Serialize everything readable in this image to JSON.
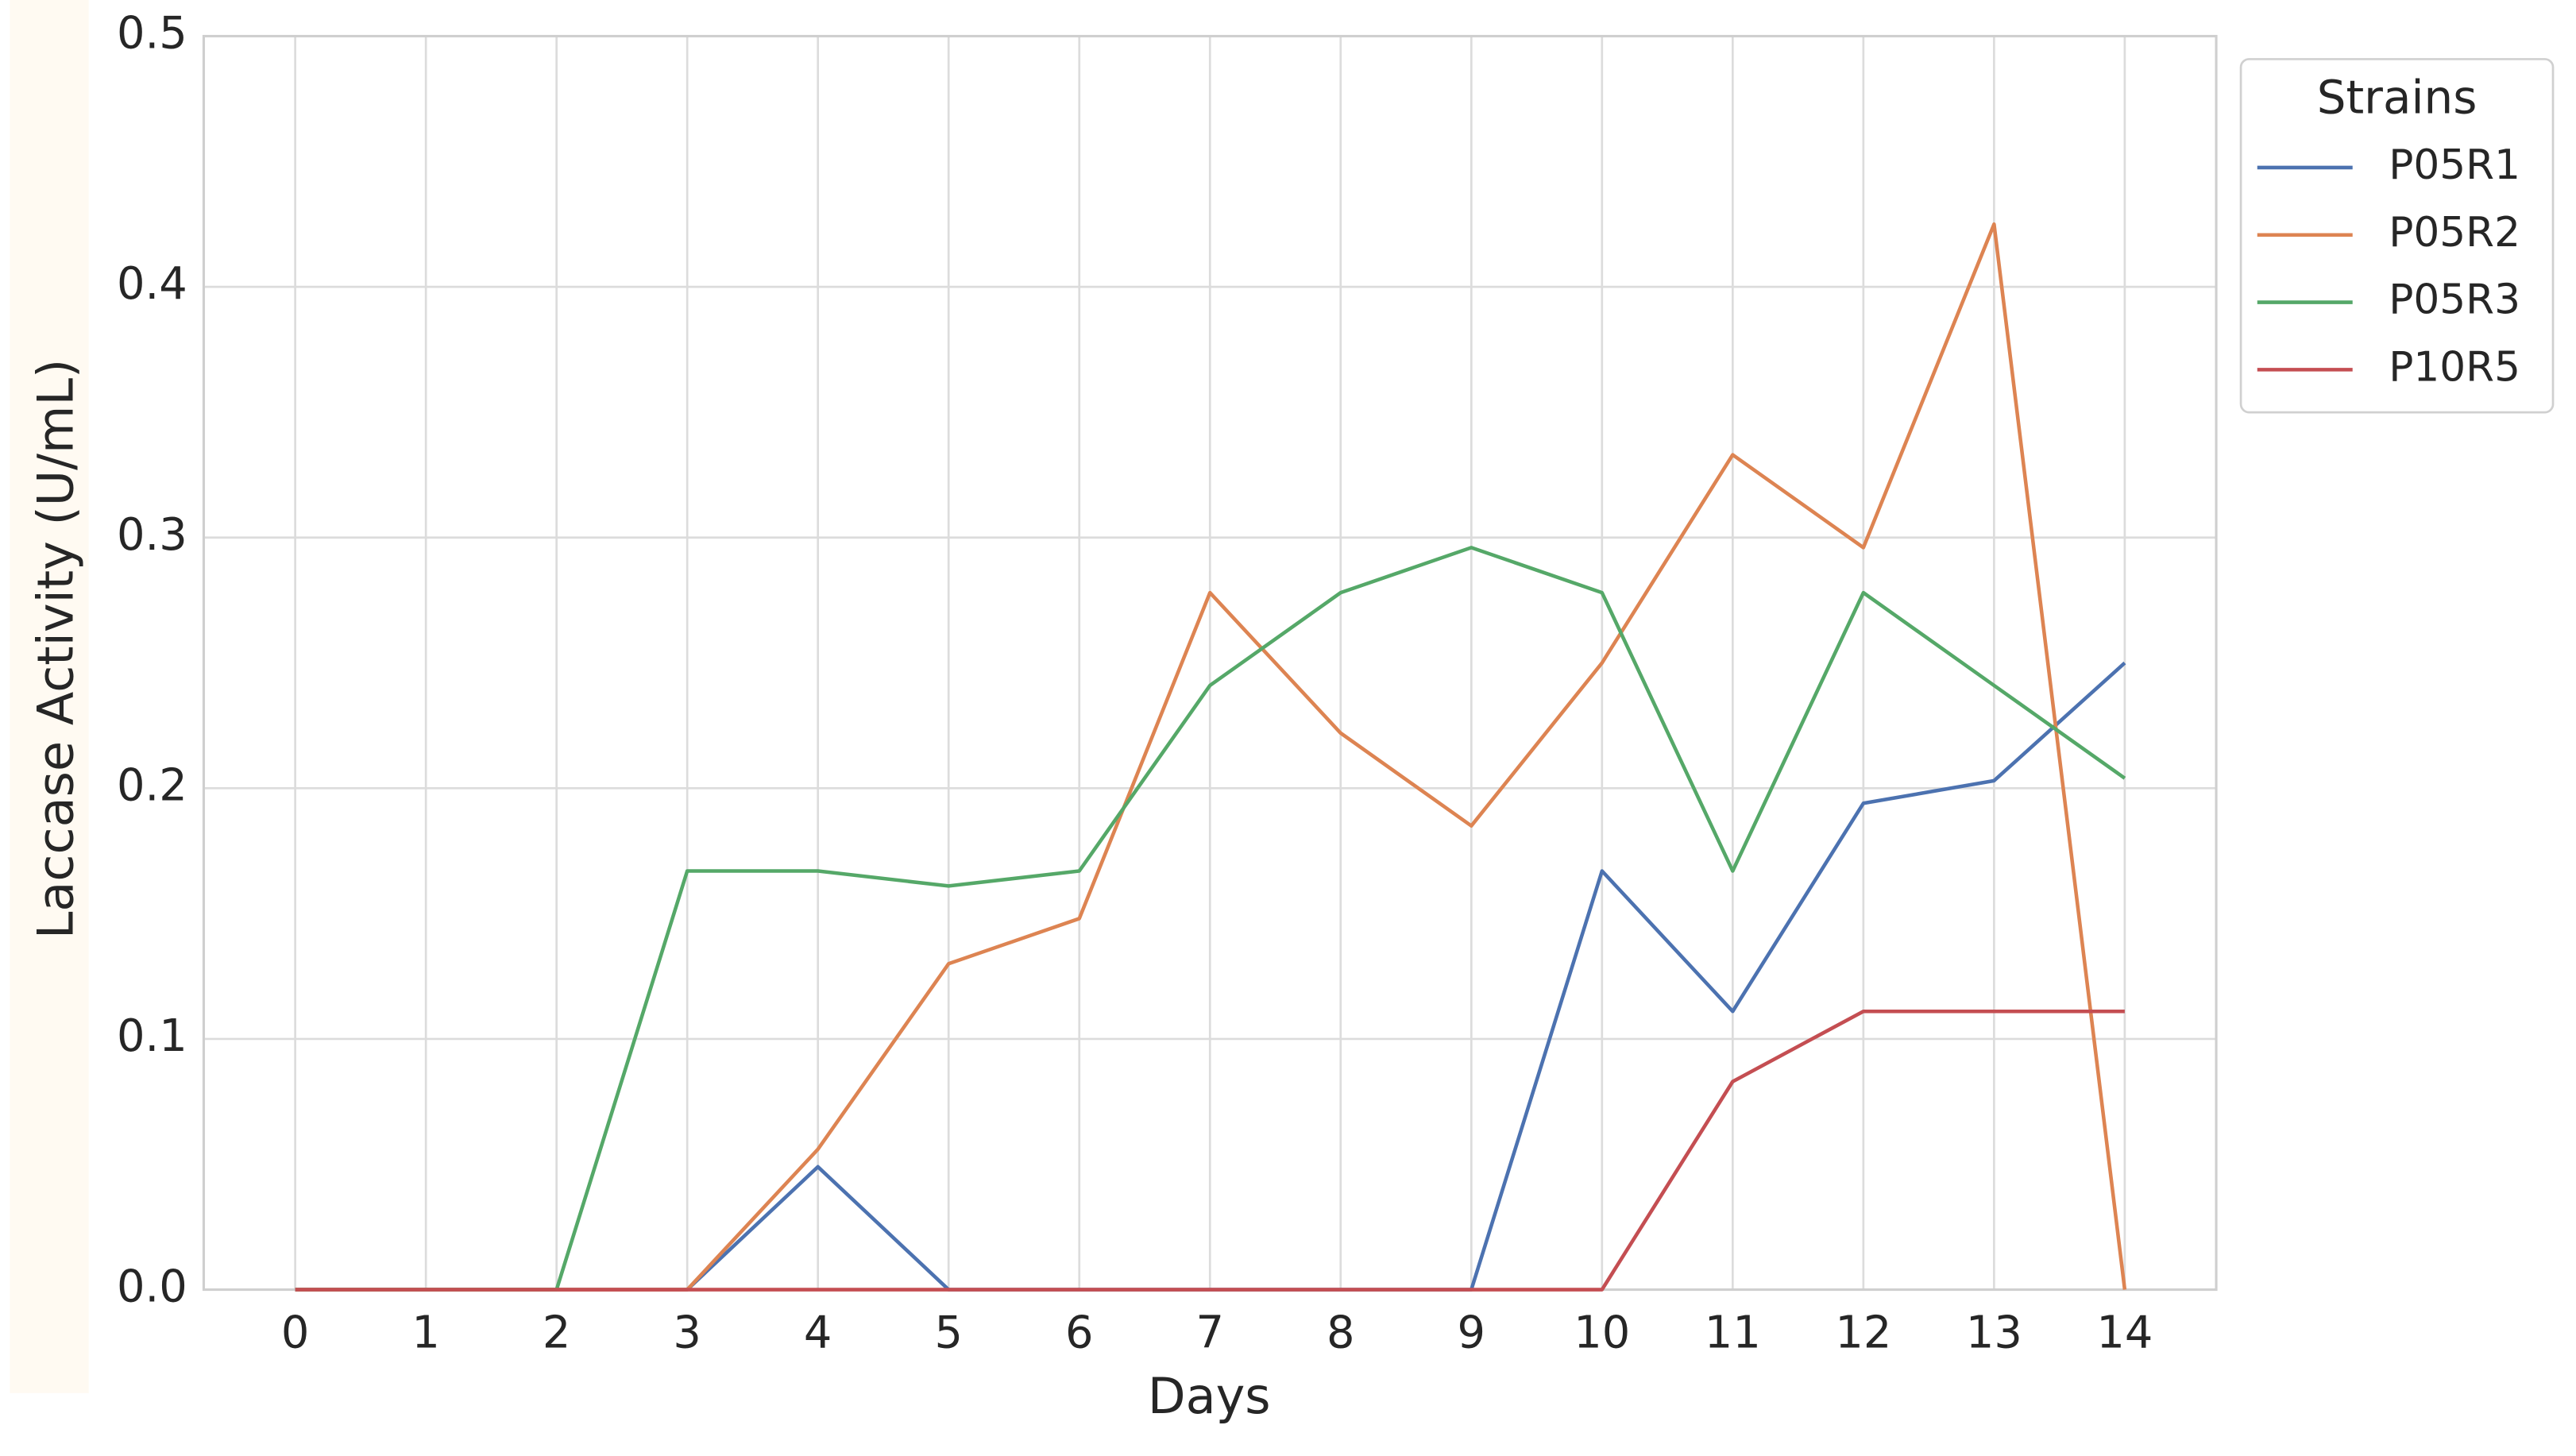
{
  "chart_data": {
    "type": "line",
    "x_label": "Days",
    "y_label": "Laccase Activity (U/mL)",
    "x": [
      0,
      1,
      2,
      3,
      4,
      5,
      6,
      7,
      8,
      9,
      10,
      11,
      12,
      13,
      14
    ],
    "xlim": [
      -0.7,
      14.7
    ],
    "xticks": [
      0,
      1,
      2,
      3,
      4,
      5,
      6,
      7,
      8,
      9,
      10,
      11,
      12,
      13,
      14
    ],
    "ylim": [
      0,
      0.5
    ],
    "yticks": [
      {
        "value": 0,
        "label": "0.0"
      },
      0.1,
      0.2,
      0.3,
      0.4,
      0.5
    ],
    "grid": true,
    "legend_title": "Strains",
    "legend_position": "upper-right-outside",
    "series": [
      {
        "name": "P05R1",
        "color": "#4c72b0",
        "values": [
          0,
          0,
          0,
          0,
          0.049,
          0,
          0,
          0,
          0,
          0,
          0.167,
          0.111,
          0.194,
          0.203,
          0.25
        ]
      },
      {
        "name": "P05R2",
        "color": "#dd8452",
        "values": [
          0,
          0,
          0,
          0,
          0.056,
          0.13,
          0.148,
          0.278,
          0.222,
          0.185,
          0.25,
          0.333,
          0.296,
          0.425,
          0
        ]
      },
      {
        "name": "P05R3",
        "color": "#55a868",
        "values": [
          0,
          0,
          0,
          0.167,
          0.167,
          0.161,
          0.167,
          0.241,
          0.278,
          0.296,
          0.278,
          0.167,
          0.278,
          0.241,
          0.204
        ]
      },
      {
        "name": "P10R5",
        "color": "#c44e52",
        "values": [
          0,
          0,
          0,
          0,
          0,
          0,
          0,
          0,
          0,
          0,
          0,
          0.083,
          0.111,
          0.111,
          0.111
        ]
      }
    ]
  }
}
